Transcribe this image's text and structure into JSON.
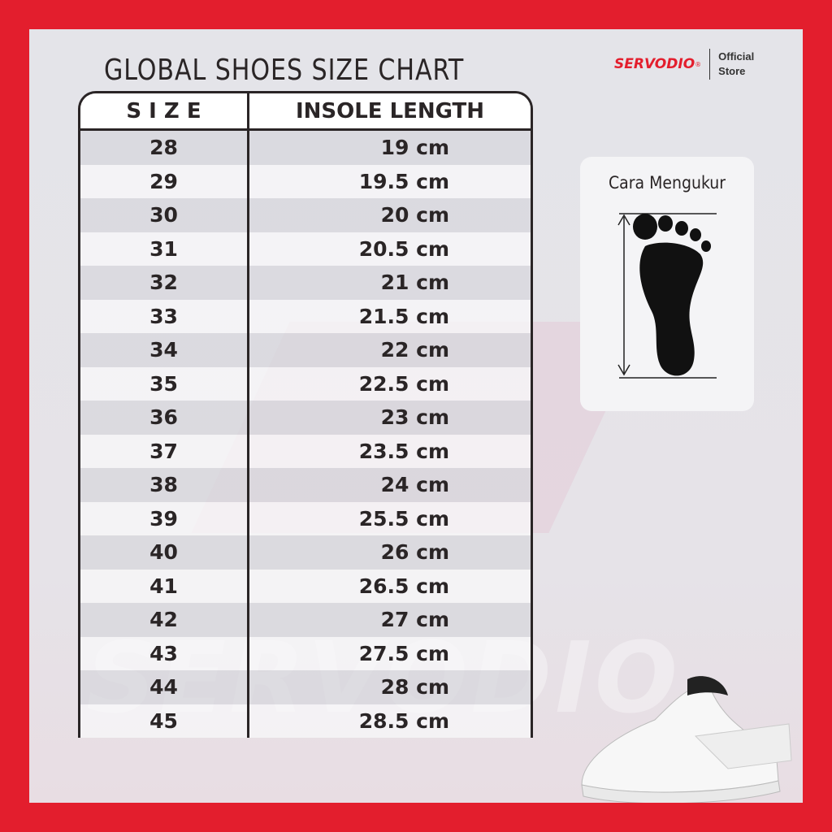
{
  "title": "GLOBAL SHOES SIZE CHART",
  "brand": {
    "name": "SERVODIO",
    "registered": "®",
    "store_line1": "Official",
    "store_line2": "Store",
    "color": "#e31e2d"
  },
  "watermark": "SERVODIO",
  "table": {
    "headers": [
      "S I Z E",
      "INSOLE LENGTH"
    ],
    "rows": [
      [
        "28",
        "19 cm"
      ],
      [
        "29",
        "19.5 cm"
      ],
      [
        "30",
        "20 cm"
      ],
      [
        "31",
        "20.5 cm"
      ],
      [
        "32",
        "21 cm"
      ],
      [
        "33",
        "21.5 cm"
      ],
      [
        "34",
        "22 cm"
      ],
      [
        "35",
        "22.5 cm"
      ],
      [
        "36",
        "23 cm"
      ],
      [
        "37",
        "23.5 cm"
      ],
      [
        "38",
        "24 cm"
      ],
      [
        "39",
        "25.5 cm"
      ],
      [
        "40",
        "26 cm"
      ],
      [
        "41",
        "26.5 cm"
      ],
      [
        "42",
        "27 cm"
      ],
      [
        "43",
        "27.5 cm"
      ],
      [
        "44",
        "28 cm"
      ],
      [
        "45",
        "28.5 cm"
      ]
    ]
  },
  "measure_card": {
    "title": "Cara Mengukur",
    "icon": "foot-icon"
  }
}
